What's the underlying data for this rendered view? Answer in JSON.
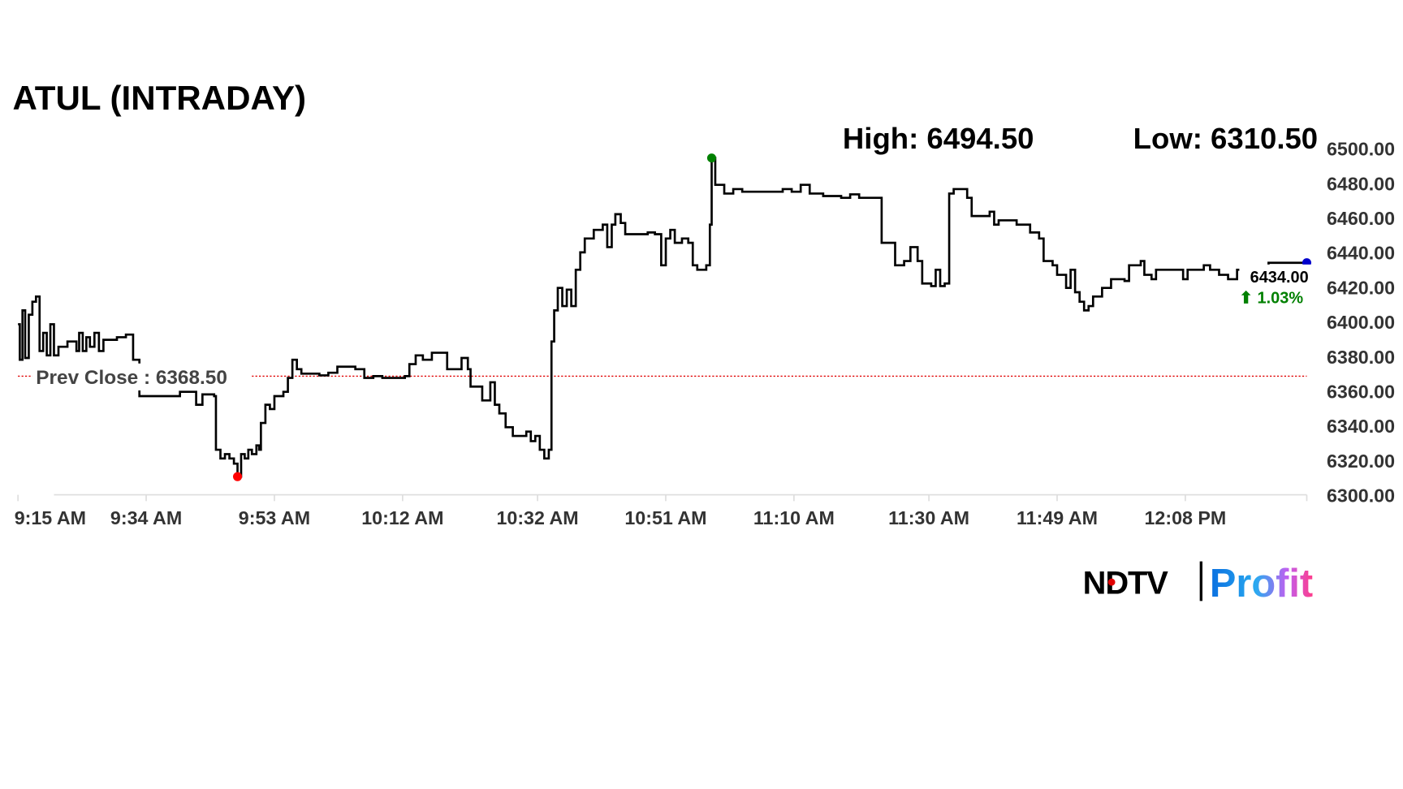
{
  "chart_data": {
    "type": "line",
    "title": "ATUL (INTRADAY)",
    "high_label": "High: 6494.50",
    "low_label": "Low: 6310.50",
    "high": 6494.5,
    "low": 6310.5,
    "prev_close": 6368.5,
    "prev_close_label": "Prev Close : 6368.50",
    "last_price_label": "6434.00",
    "change_label": "⬆ 1.03%",
    "last_price": 6434.0,
    "ylim": [
      6300,
      6500
    ],
    "yticks": [
      "6300.00",
      "6320.00",
      "6340.00",
      "6360.00",
      "6380.00",
      "6400.00",
      "6420.00",
      "6440.00",
      "6460.00",
      "6480.00",
      "6500.00"
    ],
    "xlim": [
      "9:15:00",
      "12:26:00"
    ],
    "xticks": [
      {
        "t": "9:15:00",
        "label": "9:15 AM"
      },
      {
        "t": "9:34:00",
        "label": "9:34 AM"
      },
      {
        "t": "9:53:00",
        "label": "9:53 AM"
      },
      {
        "t": "10:12:00",
        "label": "10:12 AM"
      },
      {
        "t": "10:32:00",
        "label": "10:32 AM"
      },
      {
        "t": "10:51:00",
        "label": "10:51 AM"
      },
      {
        "t": "11:10:00",
        "label": "11:10 AM"
      },
      {
        "t": "11:30:00",
        "label": "11:30 AM"
      },
      {
        "t": "11:49:00",
        "label": "11:49 AM"
      },
      {
        "t": "12:08:00",
        "label": "12:08 PM"
      },
      {
        "t": "12:26:00",
        "label": ""
      }
    ],
    "grid": false,
    "colors": {
      "line": "#000000",
      "prev_close": "#e00000",
      "high_marker": "#008000",
      "low_marker": "#ff0000",
      "last_marker": "#0000cc",
      "change": "#008000",
      "axis": "#dddddd"
    },
    "series": [
      [
        "9:15:00",
        6398.5
      ],
      [
        "9:15:16",
        6378
      ],
      [
        "9:15:40",
        6406.5
      ],
      [
        "9:16:04",
        6379
      ],
      [
        "9:16:36",
        6404
      ],
      [
        "9:17:08",
        6411.5
      ],
      [
        "9:17:40",
        6414.5
      ],
      [
        "9:18:12",
        6383
      ],
      [
        "9:18:44",
        6393.5
      ],
      [
        "9:19:16",
        6380.5
      ],
      [
        "9:19:48",
        6398.5
      ],
      [
        "9:20:20",
        6380.5
      ],
      [
        "9:21:00",
        6385.5
      ],
      [
        "9:22:20",
        6388.5
      ],
      [
        "9:23:40",
        6383
      ],
      [
        "9:24:04",
        6393.5
      ],
      [
        "9:24:36",
        6383
      ],
      [
        "9:25:08",
        6391
      ],
      [
        "9:25:40",
        6385.5
      ],
      [
        "9:26:20",
        6393.5
      ],
      [
        "9:27:00",
        6383
      ],
      [
        "9:27:40",
        6389.5
      ],
      [
        "9:29:40",
        6391
      ],
      [
        "9:31:00",
        6392.5
      ],
      [
        "9:31:40",
        6392.5
      ],
      [
        "9:32:04",
        6378
      ],
      [
        "9:33:00",
        6357
      ],
      [
        "9:39:00",
        6359.5
      ],
      [
        "9:40:36",
        6359.5
      ],
      [
        "9:41:24",
        6352
      ],
      [
        "9:42:20",
        6358
      ],
      [
        "9:44:04",
        6357
      ],
      [
        "9:44:20",
        6326
      ],
      [
        "9:45:00",
        6321
      ],
      [
        "9:45:40",
        6323.5
      ],
      [
        "9:46:20",
        6321
      ],
      [
        "9:47:00",
        6318
      ],
      [
        "9:47:32",
        6310.5
      ],
      [
        "9:48:04",
        6323.5
      ],
      [
        "9:48:36",
        6321
      ],
      [
        "9:49:08",
        6326
      ],
      [
        "9:49:40",
        6323.5
      ],
      [
        "9:50:20",
        6328.5
      ],
      [
        "9:50:44",
        6326
      ],
      [
        "9:51:00",
        6341.5
      ],
      [
        "9:51:40",
        6352
      ],
      [
        "9:52:20",
        6349.5
      ],
      [
        "9:53:00",
        6357
      ],
      [
        "9:54:20",
        6359.5
      ],
      [
        "9:55:00",
        6367.5
      ],
      [
        "9:55:40",
        6378
      ],
      [
        "9:56:20",
        6372.5
      ],
      [
        "9:57:00",
        6370
      ],
      [
        "9:59:40",
        6369
      ],
      [
        "10:01:00",
        6370.5
      ],
      [
        "10:02:20",
        6374
      ],
      [
        "10:05:00",
        6372.5
      ],
      [
        "10:06:20",
        6367.5
      ],
      [
        "10:07:40",
        6368.5
      ],
      [
        "10:09:00",
        6367.5
      ],
      [
        "10:12:20",
        6368.5
      ],
      [
        "10:13:00",
        6375.5
      ],
      [
        "10:13:56",
        6380.5
      ],
      [
        "10:15:00",
        6378
      ],
      [
        "10:16:20",
        6382
      ],
      [
        "10:17:40",
        6382
      ],
      [
        "10:18:36",
        6372.5
      ],
      [
        "10:19:40",
        6372.5
      ],
      [
        "10:20:44",
        6379
      ],
      [
        "10:21:40",
        6372.5
      ],
      [
        "10:22:04",
        6362.5
      ],
      [
        "10:23:00",
        6362.5
      ],
      [
        "10:23:48",
        6354.5
      ],
      [
        "10:25:00",
        6365
      ],
      [
        "10:25:40",
        6352
      ],
      [
        "10:26:20",
        6347
      ],
      [
        "10:27:16",
        6339
      ],
      [
        "10:28:20",
        6334
      ],
      [
        "10:29:24",
        6334
      ],
      [
        "10:30:20",
        6336.5
      ],
      [
        "10:31:00",
        6331
      ],
      [
        "10:31:40",
        6334
      ],
      [
        "10:32:20",
        6326
      ],
      [
        "10:33:00",
        6321
      ],
      [
        "10:33:40",
        6326
      ],
      [
        "10:34:04",
        6388.5
      ],
      [
        "10:34:28",
        6406.5
      ],
      [
        "10:35:00",
        6419.5
      ],
      [
        "10:35:40",
        6409
      ],
      [
        "10:36:20",
        6418.5
      ],
      [
        "10:37:00",
        6409
      ],
      [
        "10:37:40",
        6430
      ],
      [
        "10:38:20",
        6440
      ],
      [
        "10:39:00",
        6448
      ],
      [
        "10:40:20",
        6453
      ],
      [
        "10:41:40",
        6456
      ],
      [
        "10:42:20",
        6443
      ],
      [
        "10:43:00",
        6456
      ],
      [
        "10:43:32",
        6462
      ],
      [
        "10:44:20",
        6457
      ],
      [
        "10:45:00",
        6450.5
      ],
      [
        "10:47:00",
        6450.5
      ],
      [
        "10:48:20",
        6451.5
      ],
      [
        "10:49:24",
        6450.5
      ],
      [
        "10:50:20",
        6432.5
      ],
      [
        "10:51:00",
        6448
      ],
      [
        "10:51:40",
        6453
      ],
      [
        "10:52:20",
        6445.5
      ],
      [
        "10:53:24",
        6448
      ],
      [
        "10:54:20",
        6445.5
      ],
      [
        "10:55:00",
        6432.5
      ],
      [
        "10:55:40",
        6430
      ],
      [
        "10:57:00",
        6432.5
      ],
      [
        "10:57:32",
        6456
      ],
      [
        "10:57:48",
        6494.5
      ],
      [
        "10:58:20",
        6479
      ],
      [
        "10:59:40",
        6474
      ],
      [
        "11:01:00",
        6476.5
      ],
      [
        "11:02:20",
        6475
      ],
      [
        "11:05:00",
        6475
      ],
      [
        "11:08:20",
        6476.5
      ],
      [
        "11:09:40",
        6475
      ],
      [
        "11:11:00",
        6479
      ],
      [
        "11:12:20",
        6474
      ],
      [
        "11:14:20",
        6472.5
      ],
      [
        "11:17:00",
        6471.5
      ],
      [
        "11:18:20",
        6473.5
      ],
      [
        "11:19:40",
        6471.5
      ],
      [
        "11:22:20",
        6471.5
      ],
      [
        "11:23:00",
        6445.5
      ],
      [
        "11:24:20",
        6445.5
      ],
      [
        "11:25:00",
        6432.5
      ],
      [
        "11:26:20",
        6435
      ],
      [
        "11:27:16",
        6443
      ],
      [
        "11:28:20",
        6435
      ],
      [
        "11:29:00",
        6422
      ],
      [
        "11:30:20",
        6420.5
      ],
      [
        "11:31:00",
        6430
      ],
      [
        "11:31:40",
        6420.5
      ],
      [
        "11:32:20",
        6422
      ],
      [
        "11:33:00",
        6474
      ],
      [
        "11:33:40",
        6476.5
      ],
      [
        "11:35:40",
        6471.5
      ],
      [
        "11:36:20",
        6461
      ],
      [
        "11:39:00",
        6463.5
      ],
      [
        "11:39:40",
        6456
      ],
      [
        "11:40:20",
        6458.5
      ],
      [
        "11:43:00",
        6456
      ],
      [
        "11:45:00",
        6451.5
      ],
      [
        "11:46:20",
        6448
      ],
      [
        "11:47:00",
        6435
      ],
      [
        "11:48:20",
        6432.5
      ],
      [
        "11:49:00",
        6427
      ],
      [
        "11:50:20",
        6419.5
      ],
      [
        "11:51:00",
        6430
      ],
      [
        "11:51:40",
        6417
      ],
      [
        "11:52:20",
        6411.5
      ],
      [
        "11:53:00",
        6406.5
      ],
      [
        "11:53:40",
        6409
      ],
      [
        "11:54:20",
        6414.5
      ],
      [
        "11:55:40",
        6419.5
      ],
      [
        "11:57:00",
        6424.5
      ],
      [
        "11:59:00",
        6423.5
      ],
      [
        "11:59:40",
        6432.5
      ],
      [
        "12:01:24",
        6435
      ],
      [
        "12:01:56",
        6427
      ],
      [
        "12:03:00",
        6424.5
      ],
      [
        "12:03:40",
        6430
      ],
      [
        "12:07:00",
        6430
      ],
      [
        "12:07:40",
        6424.5
      ],
      [
        "12:08:20",
        6430
      ],
      [
        "12:10:44",
        6432.5
      ],
      [
        "12:11:40",
        6430
      ],
      [
        "12:13:00",
        6427
      ],
      [
        "12:14:20",
        6424.5
      ],
      [
        "12:15:40",
        6430
      ],
      [
        "12:20:20",
        6434
      ],
      [
        "12:26:00",
        6434
      ]
    ]
  },
  "logo": {
    "brand": "NDTV",
    "product": "Profit"
  }
}
